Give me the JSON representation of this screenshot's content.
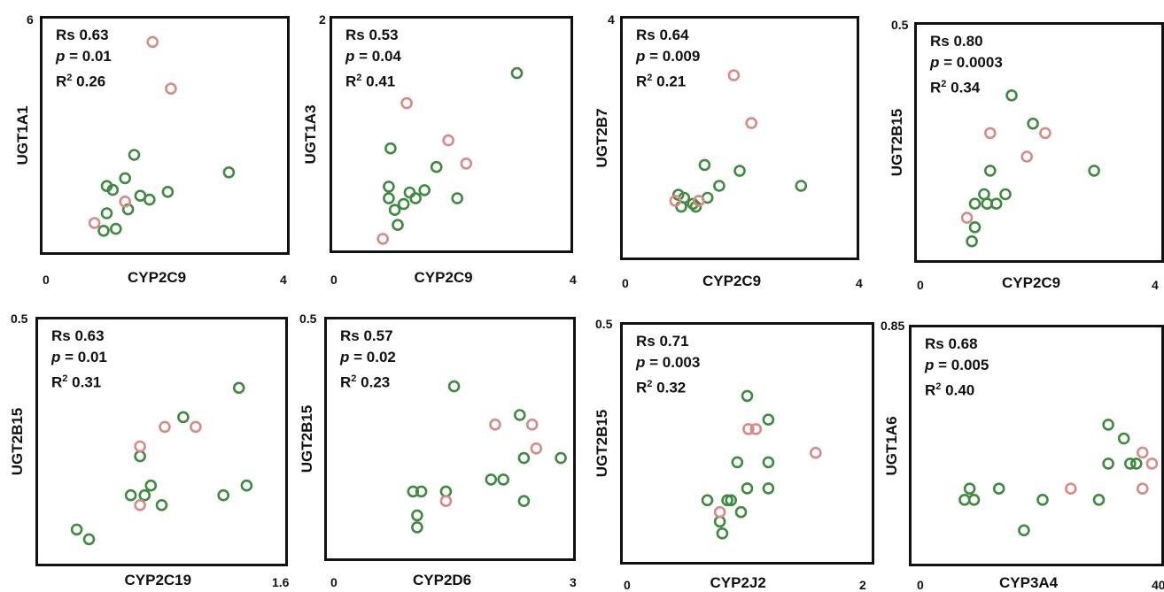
{
  "colors": {
    "green": "#3e8a3e",
    "pink": "#d98a86",
    "axis": "#111111"
  },
  "chart_data": [
    {
      "type": "scatter",
      "xlabel": "CYP2C9",
      "ylabel": "UGT1A1",
      "xlim": [
        0,
        4
      ],
      "ylim": [
        0,
        6
      ],
      "x_ticks": [
        "0",
        "4"
      ],
      "y_ticks": [
        "6"
      ],
      "rs": "Rs 0.63",
      "p": "= 0.01",
      "r2": "0.26",
      "points": [
        {
          "x": 1.05,
          "y": 1.7,
          "group": "green"
        },
        {
          "x": 1.15,
          "y": 1.6,
          "group": "green"
        },
        {
          "x": 1.35,
          "y": 1.9,
          "group": "green"
        },
        {
          "x": 1.5,
          "y": 2.5,
          "group": "green"
        },
        {
          "x": 1.6,
          "y": 1.45,
          "group": "green"
        },
        {
          "x": 1.75,
          "y": 1.35,
          "group": "green"
        },
        {
          "x": 2.05,
          "y": 1.55,
          "group": "green"
        },
        {
          "x": 3.05,
          "y": 2.05,
          "group": "green"
        },
        {
          "x": 1.4,
          "y": 1.1,
          "group": "green"
        },
        {
          "x": 1.05,
          "y": 1.0,
          "group": "green"
        },
        {
          "x": 1.2,
          "y": 0.6,
          "group": "green"
        },
        {
          "x": 1.0,
          "y": 0.55,
          "group": "green"
        },
        {
          "x": 0.85,
          "y": 0.75,
          "group": "pink"
        },
        {
          "x": 1.35,
          "y": 1.3,
          "group": "pink"
        },
        {
          "x": 1.8,
          "y": 5.4,
          "group": "pink"
        },
        {
          "x": 2.1,
          "y": 4.2,
          "group": "pink"
        }
      ]
    },
    {
      "type": "scatter",
      "xlabel": "CYP2C9",
      "ylabel": "UGT1A3",
      "xlim": [
        0,
        4
      ],
      "ylim": [
        0,
        2
      ],
      "x_ticks": [
        "0",
        "4"
      ],
      "y_ticks": [
        "2"
      ],
      "rs": "Rs 0.53",
      "p": "= 0.04",
      "r2": "0.41",
      "points": [
        {
          "x": 0.95,
          "y": 0.45,
          "group": "green"
        },
        {
          "x": 1.05,
          "y": 0.35,
          "group": "green"
        },
        {
          "x": 1.1,
          "y": 0.22,
          "group": "green"
        },
        {
          "x": 1.2,
          "y": 0.4,
          "group": "green"
        },
        {
          "x": 1.3,
          "y": 0.5,
          "group": "green"
        },
        {
          "x": 1.4,
          "y": 0.45,
          "group": "green"
        },
        {
          "x": 1.55,
          "y": 0.52,
          "group": "green"
        },
        {
          "x": 0.95,
          "y": 0.55,
          "group": "green"
        },
        {
          "x": 0.98,
          "y": 0.88,
          "group": "green"
        },
        {
          "x": 1.75,
          "y": 0.72,
          "group": "green"
        },
        {
          "x": 2.1,
          "y": 0.45,
          "group": "green"
        },
        {
          "x": 3.1,
          "y": 1.53,
          "group": "green"
        },
        {
          "x": 0.85,
          "y": 0.1,
          "group": "pink"
        },
        {
          "x": 1.25,
          "y": 1.27,
          "group": "pink"
        },
        {
          "x": 1.95,
          "y": 0.95,
          "group": "pink"
        },
        {
          "x": 2.25,
          "y": 0.75,
          "group": "pink"
        }
      ]
    },
    {
      "type": "scatter",
      "xlabel": "CYP2C9",
      "ylabel": "UGT2B7",
      "xlim": [
        0,
        4
      ],
      "ylim": [
        0,
        4
      ],
      "x_ticks": [
        "0",
        "4"
      ],
      "y_ticks": [
        "4"
      ],
      "rs": "Rs 0.64",
      "p": "= 0.009",
      "r2": "0.21",
      "points": [
        {
          "x": 0.95,
          "y": 1.05,
          "group": "green"
        },
        {
          "x": 1.0,
          "y": 0.85,
          "group": "green"
        },
        {
          "x": 1.05,
          "y": 1.0,
          "group": "green"
        },
        {
          "x": 1.2,
          "y": 0.9,
          "group": "green"
        },
        {
          "x": 1.25,
          "y": 0.85,
          "group": "green"
        },
        {
          "x": 1.45,
          "y": 1.0,
          "group": "green"
        },
        {
          "x": 1.65,
          "y": 1.2,
          "group": "green"
        },
        {
          "x": 1.4,
          "y": 1.55,
          "group": "green"
        },
        {
          "x": 2.0,
          "y": 1.45,
          "group": "green"
        },
        {
          "x": 3.05,
          "y": 1.2,
          "group": "green"
        },
        {
          "x": 0.9,
          "y": 0.95,
          "group": "pink"
        },
        {
          "x": 1.3,
          "y": 0.95,
          "group": "pink"
        },
        {
          "x": 1.9,
          "y": 3.05,
          "group": "pink"
        },
        {
          "x": 2.2,
          "y": 2.25,
          "group": "pink"
        }
      ]
    },
    {
      "type": "scatter",
      "xlabel": "CYP2C9",
      "ylabel": "UGT2B15",
      "xlim": [
        0,
        4
      ],
      "ylim": [
        0,
        0.5
      ],
      "x_ticks": [
        "0",
        "4"
      ],
      "y_ticks": [
        "0.5"
      ],
      "rs": "Rs 0.80",
      "p": "= 0.0003",
      "r2": "0.34",
      "points": [
        {
          "x": 0.9,
          "y": 0.04,
          "group": "green"
        },
        {
          "x": 0.95,
          "y": 0.07,
          "group": "green"
        },
        {
          "x": 0.95,
          "y": 0.12,
          "group": "green"
        },
        {
          "x": 1.1,
          "y": 0.14,
          "group": "green"
        },
        {
          "x": 1.15,
          "y": 0.12,
          "group": "green"
        },
        {
          "x": 1.3,
          "y": 0.12,
          "group": "green"
        },
        {
          "x": 1.45,
          "y": 0.14,
          "group": "green"
        },
        {
          "x": 1.2,
          "y": 0.19,
          "group": "green"
        },
        {
          "x": 1.55,
          "y": 0.35,
          "group": "green"
        },
        {
          "x": 1.9,
          "y": 0.29,
          "group": "green"
        },
        {
          "x": 2.9,
          "y": 0.19,
          "group": "green"
        },
        {
          "x": 0.82,
          "y": 0.09,
          "group": "pink"
        },
        {
          "x": 1.2,
          "y": 0.27,
          "group": "pink"
        },
        {
          "x": 1.8,
          "y": 0.22,
          "group": "pink"
        },
        {
          "x": 2.1,
          "y": 0.27,
          "group": "pink"
        }
      ]
    },
    {
      "type": "scatter",
      "xlabel": "CYP2C19",
      "ylabel": "UGT2B15",
      "xlim": [
        0,
        1.6
      ],
      "ylim": [
        0,
        0.5
      ],
      "x_ticks": [
        "1.6"
      ],
      "y_ticks": [
        "0.5"
      ],
      "rs": "Rs 0.63",
      "p": "= 0.01",
      "r2": "0.31",
      "points": [
        {
          "x": 0.25,
          "y": 0.07,
          "group": "green"
        },
        {
          "x": 0.33,
          "y": 0.05,
          "group": "green"
        },
        {
          "x": 0.6,
          "y": 0.14,
          "group": "green"
        },
        {
          "x": 0.69,
          "y": 0.14,
          "group": "green"
        },
        {
          "x": 0.73,
          "y": 0.16,
          "group": "green"
        },
        {
          "x": 0.8,
          "y": 0.12,
          "group": "green"
        },
        {
          "x": 0.66,
          "y": 0.22,
          "group": "green"
        },
        {
          "x": 0.94,
          "y": 0.3,
          "group": "green"
        },
        {
          "x": 1.2,
          "y": 0.14,
          "group": "green"
        },
        {
          "x": 1.3,
          "y": 0.36,
          "group": "green"
        },
        {
          "x": 1.35,
          "y": 0.16,
          "group": "green"
        },
        {
          "x": 0.66,
          "y": 0.12,
          "group": "pink"
        },
        {
          "x": 0.66,
          "y": 0.24,
          "group": "pink"
        },
        {
          "x": 0.82,
          "y": 0.28,
          "group": "pink"
        },
        {
          "x": 1.02,
          "y": 0.28,
          "group": "pink"
        }
      ]
    },
    {
      "type": "scatter",
      "xlabel": "CYP2D6",
      "ylabel": "UGT2B15",
      "xlim": [
        0,
        3
      ],
      "ylim": [
        0,
        0.5
      ],
      "x_ticks": [
        "0",
        "3"
      ],
      "y_ticks": [
        "0.5"
      ],
      "rs": "Rs 0.57",
      "p": "= 0.02",
      "r2": "0.23",
      "points": [
        {
          "x": 1.05,
          "y": 0.14,
          "group": "green"
        },
        {
          "x": 1.15,
          "y": 0.14,
          "group": "green"
        },
        {
          "x": 1.1,
          "y": 0.09,
          "group": "green"
        },
        {
          "x": 1.1,
          "y": 0.065,
          "group": "green"
        },
        {
          "x": 1.45,
          "y": 0.14,
          "group": "green"
        },
        {
          "x": 1.55,
          "y": 0.36,
          "group": "green"
        },
        {
          "x": 2.0,
          "y": 0.165,
          "group": "green"
        },
        {
          "x": 2.15,
          "y": 0.165,
          "group": "green"
        },
        {
          "x": 2.35,
          "y": 0.3,
          "group": "green"
        },
        {
          "x": 2.4,
          "y": 0.21,
          "group": "green"
        },
        {
          "x": 2.4,
          "y": 0.12,
          "group": "green"
        },
        {
          "x": 2.85,
          "y": 0.21,
          "group": "green"
        },
        {
          "x": 1.45,
          "y": 0.12,
          "group": "pink"
        },
        {
          "x": 2.05,
          "y": 0.28,
          "group": "pink"
        },
        {
          "x": 2.5,
          "y": 0.28,
          "group": "pink"
        },
        {
          "x": 2.55,
          "y": 0.23,
          "group": "pink"
        }
      ]
    },
    {
      "type": "scatter",
      "xlabel": "CYP2J2",
      "ylabel": "UGT2B15",
      "xlim": [
        0,
        2
      ],
      "ylim": [
        0,
        0.5
      ],
      "x_ticks": [
        "0",
        "2"
      ],
      "y_ticks": [
        "0.5"
      ],
      "rs": "Rs 0.71",
      "p": "= 0.003",
      "r2": "0.32",
      "points": [
        {
          "x": 0.68,
          "y": 0.13,
          "group": "green"
        },
        {
          "x": 0.78,
          "y": 0.085,
          "group": "green"
        },
        {
          "x": 0.8,
          "y": 0.06,
          "group": "green"
        },
        {
          "x": 0.84,
          "y": 0.13,
          "group": "green"
        },
        {
          "x": 0.87,
          "y": 0.13,
          "group": "green"
        },
        {
          "x": 0.95,
          "y": 0.105,
          "group": "green"
        },
        {
          "x": 0.92,
          "y": 0.21,
          "group": "green"
        },
        {
          "x": 1.0,
          "y": 0.155,
          "group": "green"
        },
        {
          "x": 1.17,
          "y": 0.155,
          "group": "green"
        },
        {
          "x": 1.17,
          "y": 0.21,
          "group": "green"
        },
        {
          "x": 1.0,
          "y": 0.35,
          "group": "green"
        },
        {
          "x": 1.17,
          "y": 0.3,
          "group": "green"
        },
        {
          "x": 0.78,
          "y": 0.105,
          "group": "pink"
        },
        {
          "x": 1.01,
          "y": 0.28,
          "group": "pink"
        },
        {
          "x": 1.07,
          "y": 0.28,
          "group": "pink"
        },
        {
          "x": 1.55,
          "y": 0.23,
          "group": "pink"
        }
      ]
    },
    {
      "type": "scatter",
      "xlabel": "CYP3A4",
      "ylabel": "UGT1A6",
      "xlim": [
        0,
        40
      ],
      "ylim": [
        0,
        0.85
      ],
      "x_ticks": [
        "0",
        "40"
      ],
      "y_ticks": [
        "0.85"
      ],
      "rs": "Rs 0.68",
      "p": "= 0.005",
      "r2": "0.40",
      "points": [
        {
          "x": 8.5,
          "y": 0.23,
          "group": "green"
        },
        {
          "x": 9.3,
          "y": 0.27,
          "group": "green"
        },
        {
          "x": 10.0,
          "y": 0.23,
          "group": "green"
        },
        {
          "x": 14.0,
          "y": 0.27,
          "group": "green"
        },
        {
          "x": 18.0,
          "y": 0.12,
          "group": "green"
        },
        {
          "x": 21.0,
          "y": 0.23,
          "group": "green"
        },
        {
          "x": 30.0,
          "y": 0.23,
          "group": "green"
        },
        {
          "x": 31.5,
          "y": 0.36,
          "group": "green"
        },
        {
          "x": 31.5,
          "y": 0.5,
          "group": "green"
        },
        {
          "x": 34.0,
          "y": 0.45,
          "group": "green"
        },
        {
          "x": 35.0,
          "y": 0.36,
          "group": "green"
        },
        {
          "x": 36.0,
          "y": 0.36,
          "group": "green"
        },
        {
          "x": 25.5,
          "y": 0.27,
          "group": "pink"
        },
        {
          "x": 37.0,
          "y": 0.27,
          "group": "pink"
        },
        {
          "x": 37.0,
          "y": 0.4,
          "group": "pink"
        },
        {
          "x": 38.5,
          "y": 0.36,
          "group": "pink"
        }
      ]
    }
  ]
}
